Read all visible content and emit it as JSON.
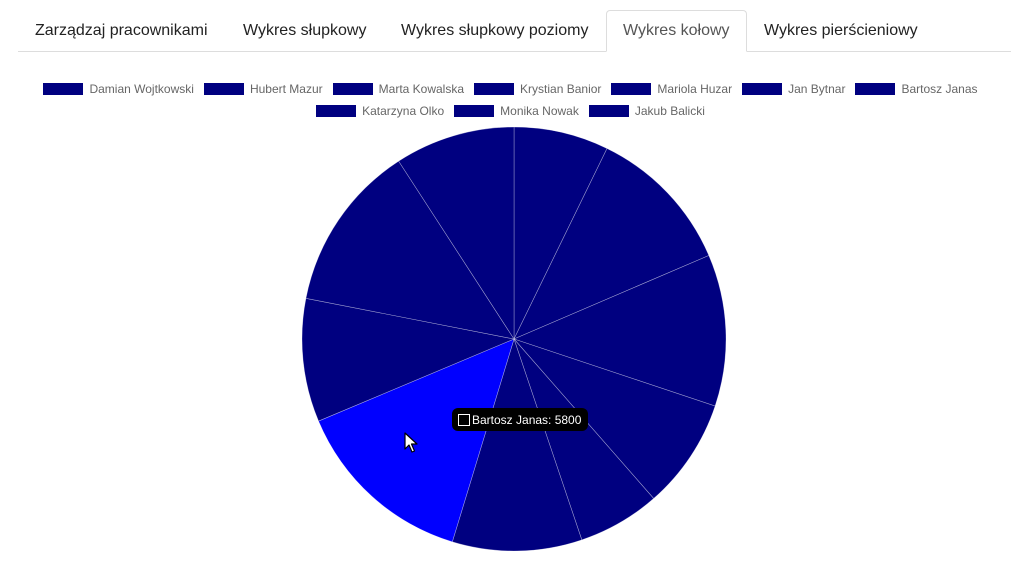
{
  "tabs": [
    {
      "label": "Zarządzaj pracownikami",
      "active": false
    },
    {
      "label": "Wykres słupkowy",
      "active": false
    },
    {
      "label": "Wykres słupkowy poziomy",
      "active": false
    },
    {
      "label": "Wykres kołowy",
      "active": true
    },
    {
      "label": "Wykres pierścieniowy",
      "active": false
    }
  ],
  "chart_data": {
    "type": "pie",
    "title": "",
    "categories": [
      "Damian Wojtkowski",
      "Hubert Mazur",
      "Marta Kowalska",
      "Krystian Banior",
      "Mariola Huzar",
      "Jan Bytnar",
      "Bartosz Janas",
      "Katarzyna Olko",
      "Monika Nowak",
      "Jakub Balicki"
    ],
    "values": [
      3000,
      4700,
      4800,
      3500,
      2600,
      4100,
      5800,
      3900,
      5300,
      3800
    ],
    "colors": [
      "#000080",
      "#000080",
      "#000080",
      "#000080",
      "#000080",
      "#000080",
      "#0000ff",
      "#000080",
      "#000080",
      "#000080"
    ],
    "legend": "top",
    "highlighted": "Bartosz Janas"
  },
  "tooltip": {
    "label": "Bartosz Janas: 5800"
  },
  "colors": {
    "slice": "#000080",
    "slice_hover": "#0000ff",
    "slice_border": "#ffffff"
  }
}
